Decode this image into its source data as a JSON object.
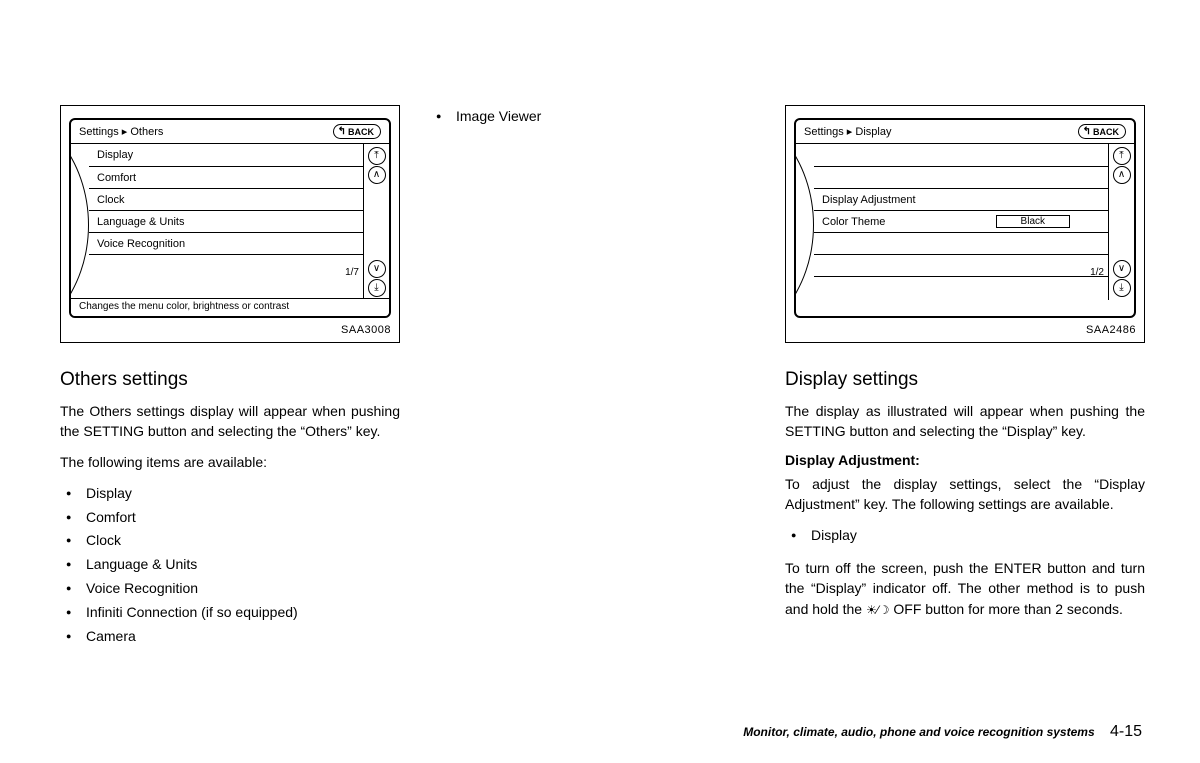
{
  "left": {
    "figure_code": "SAA3008",
    "screen": {
      "breadcrumb": "Settings ▸ Others",
      "back_label": "BACK",
      "rows": [
        "Display",
        "Comfort",
        "Clock",
        "Language & Units",
        "Voice Recognition"
      ],
      "page_indicator": "1/7",
      "hint": "Changes the menu color, brightness or contrast"
    },
    "heading": "Others settings",
    "para1": "The Others settings display will appear when pushing the SETTING button and selecting the “Others” key.",
    "para2": "The following items are available:",
    "items": [
      "Display",
      "Comfort",
      "Clock",
      "Language & Units",
      "Voice Recognition",
      "Infiniti Connection (if so equipped)",
      "Camera"
    ]
  },
  "mid": {
    "items": [
      "Image Viewer"
    ]
  },
  "right": {
    "figure_code": "SAA2486",
    "screen": {
      "breadcrumb": "Settings ▸ Display",
      "back_label": "BACK",
      "row_adjust": "Display Adjustment",
      "row_theme_label": "Color Theme",
      "row_theme_value": "Black",
      "page_indicator": "1/2"
    },
    "heading": "Display settings",
    "para1": "The display as illustrated will appear when pushing the SETTING button and selecting the “Display” key.",
    "subhead": "Display Adjustment:",
    "para2": "To adjust the display settings, select the “Display Adjustment” key. The following settings are available.",
    "items": [
      "Display"
    ],
    "para3_a": "To turn off the screen, push the ENTER button and turn the “Display” indicator off. The other method is to push and hold the ",
    "para3_b": " OFF button for more than 2 seconds."
  },
  "footer": {
    "chapter": "Monitor, climate, audio, phone and voice recognition systems",
    "page": "4-15"
  }
}
